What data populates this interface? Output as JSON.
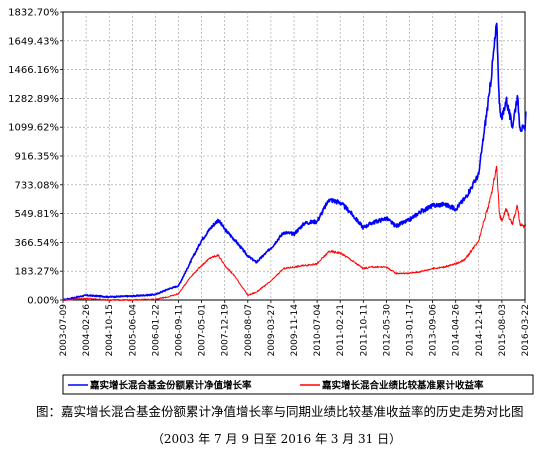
{
  "chart_data": {
    "type": "line",
    "y_ticks": [
      "1832.70%",
      "1649.43%",
      "1466.16%",
      "1282.89%",
      "1099.62%",
      "916.35%",
      "733.08%",
      "549.81%",
      "366.54%",
      "183.27%",
      "0.00%"
    ],
    "y_tick_values": [
      1832.7,
      1649.43,
      1466.16,
      1282.89,
      1099.62,
      916.35,
      733.08,
      549.81,
      366.54,
      183.27,
      0.0
    ],
    "ylim": [
      0,
      1832.7
    ],
    "x_ticks": [
      "2003-07-09",
      "2004-02-26",
      "2004-10-15",
      "2005-06-04",
      "2006-01-22",
      "2006-09-11",
      "2007-05-01",
      "2007-12-19",
      "2008-08-07",
      "2009-03-27",
      "2009-11-14",
      "2010-07-04",
      "2011-02-21",
      "2011-10-11",
      "2012-05-30",
      "2013-01-17",
      "2013-09-06",
      "2014-04-26",
      "2014-12-14",
      "2015-08-03",
      "2016-03-22"
    ],
    "grid": true,
    "legend_position": "bottom",
    "series": [
      {
        "name": "嘉实增长混合基金份额累计净值增长率",
        "color": "#0000ff",
        "x": [
          "2003-07-09",
          "2004-02-26",
          "2004-10-15",
          "2005-06-04",
          "2006-01-22",
          "2006-06-01",
          "2006-09-11",
          "2007-01-01",
          "2007-05-01",
          "2007-08-01",
          "2007-10-16",
          "2007-12-19",
          "2008-04-01",
          "2008-08-07",
          "2008-11-01",
          "2009-03-27",
          "2009-08-01",
          "2009-11-14",
          "2010-03-01",
          "2010-07-04",
          "2010-11-01",
          "2011-02-21",
          "2011-06-01",
          "2011-10-11",
          "2012-01-01",
          "2012-05-30",
          "2012-09-01",
          "2013-01-17",
          "2013-05-01",
          "2013-09-06",
          "2014-01-01",
          "2014-04-26",
          "2014-08-01",
          "2014-12-14",
          "2015-02-01",
          "2015-04-01",
          "2015-06-12",
          "2015-07-08",
          "2015-08-03",
          "2015-09-15",
          "2015-11-15",
          "2016-01-05",
          "2016-02-01",
          "2016-03-22",
          "2016-03-31"
        ],
        "values": [
          0,
          30,
          20,
          25,
          35,
          70,
          90,
          230,
          380,
          460,
          510,
          450,
          380,
          280,
          240,
          330,
          430,
          420,
          490,
          500,
          640,
          620,
          560,
          460,
          490,
          520,
          470,
          510,
          560,
          600,
          610,
          580,
          650,
          800,
          1050,
          1320,
          1760,
          1250,
          1150,
          1280,
          1100,
          1300,
          1100,
          1080,
          1200
        ]
      },
      {
        "name": "嘉实增长混合业绩比较基准累计收益率",
        "color": "#ff0000",
        "x": [
          "2003-07-09",
          "2004-02-26",
          "2004-10-15",
          "2005-06-04",
          "2006-01-22",
          "2006-06-01",
          "2006-09-11",
          "2007-01-01",
          "2007-05-01",
          "2007-08-01",
          "2007-10-16",
          "2007-12-19",
          "2008-04-01",
          "2008-08-07",
          "2008-11-01",
          "2009-03-27",
          "2009-08-01",
          "2009-11-14",
          "2010-03-01",
          "2010-07-04",
          "2010-11-01",
          "2011-02-21",
          "2011-06-01",
          "2011-10-11",
          "2012-01-01",
          "2012-05-30",
          "2012-09-01",
          "2013-01-17",
          "2013-05-01",
          "2013-09-06",
          "2014-01-01",
          "2014-04-26",
          "2014-08-01",
          "2014-12-14",
          "2015-02-01",
          "2015-04-01",
          "2015-06-12",
          "2015-07-08",
          "2015-08-03",
          "2015-09-15",
          "2015-11-15",
          "2016-01-05",
          "2016-02-01",
          "2016-03-22",
          "2016-03-31"
        ],
        "values": [
          0,
          10,
          0,
          0,
          5,
          20,
          40,
          140,
          220,
          270,
          285,
          220,
          150,
          30,
          50,
          120,
          200,
          210,
          220,
          230,
          310,
          300,
          260,
          200,
          210,
          210,
          170,
          170,
          180,
          200,
          210,
          230,
          260,
          380,
          500,
          620,
          850,
          550,
          500,
          580,
          480,
          600,
          480,
          460,
          480
        ]
      }
    ]
  },
  "caption": "图：嘉实增长混合基金份额累计净值增长率与同期业绩比较基准收益率的历史走势对比图",
  "caption_sub": "（2003 年 7 月 9 日至 2016 年 3 月 31 日）"
}
